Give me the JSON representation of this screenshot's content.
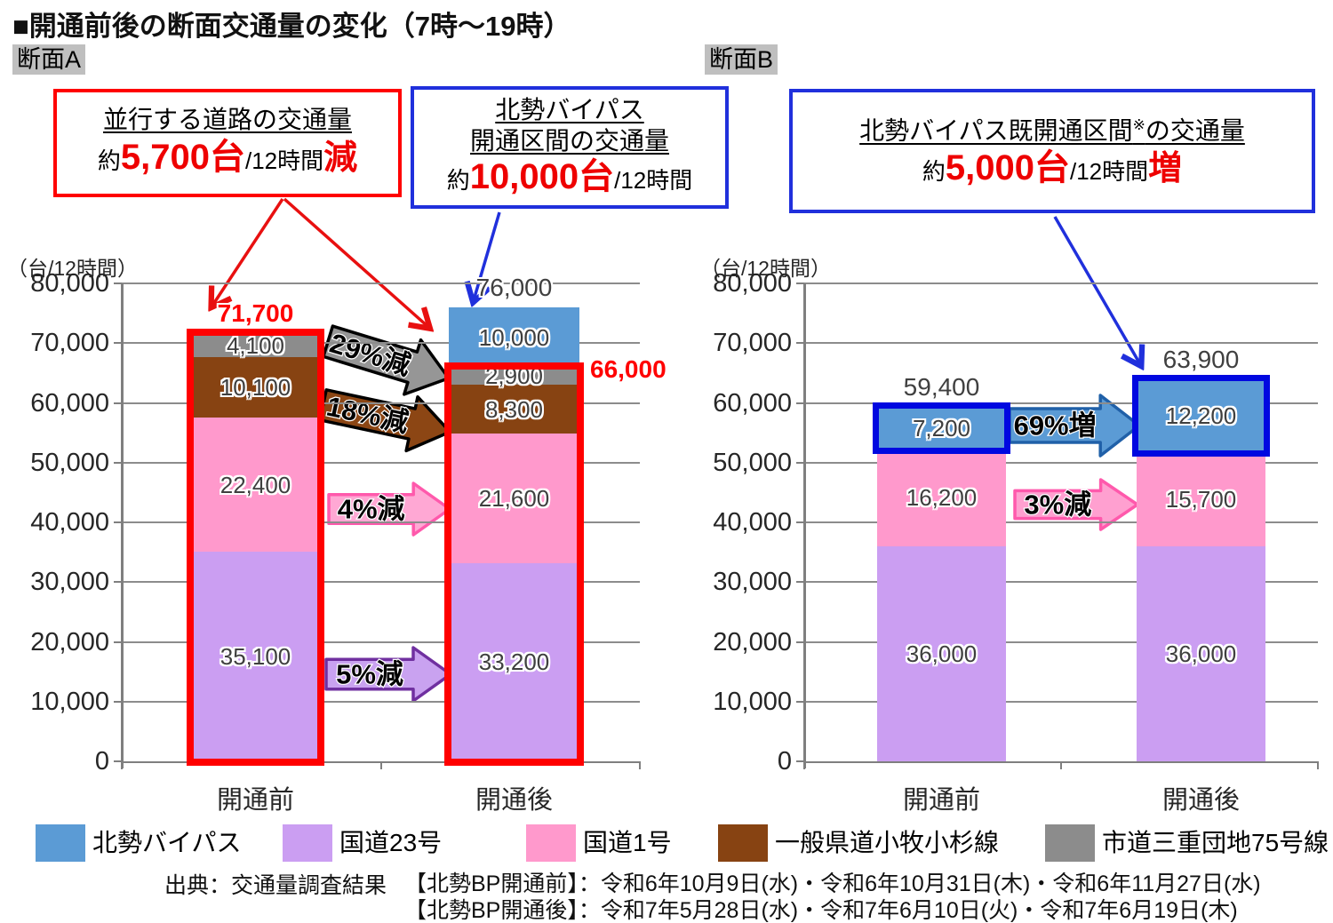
{
  "title": "■開通前後の断面交通量の変化（7時～19時）",
  "section_a": {
    "label": "断面A"
  },
  "section_b": {
    "label": "断面B"
  },
  "callouts": {
    "parallel_roads": {
      "heading": "並行する道路の交通量",
      "prefix": "約",
      "value": "5,700台",
      "unit": "/12時間",
      "suffix": "減"
    },
    "new_section": {
      "heading_line1": "北勢バイパス",
      "heading_line2": "開通区間の交通量",
      "prefix": "約",
      "value": "10,000台",
      "unit": "/12時間"
    },
    "existing_section": {
      "heading": "北勢バイパス既開通区間",
      "note_mark": "※",
      "heading_tail": "の交通量",
      "prefix": "約",
      "value": "5,000台",
      "unit": "/12時間",
      "suffix": "増"
    }
  },
  "y_axis": {
    "unit": "（台/12時間）",
    "max": 80000,
    "step": 10000,
    "tick_labels": [
      "0",
      "10,000",
      "20,000",
      "30,000",
      "40,000",
      "50,000",
      "60,000",
      "70,000",
      "80,000"
    ]
  },
  "chart_data": [
    {
      "type": "bar",
      "stacked": true,
      "section": "断面A",
      "categories": [
        "開通前",
        "開通後"
      ],
      "ylim": [
        0,
        80000
      ],
      "grid": true,
      "series": [
        {
          "name": "国道23号",
          "color": "#CB9EF2",
          "values": [
            35100,
            33200
          ]
        },
        {
          "name": "国道1号",
          "color": "#FF99CC",
          "values": [
            22400,
            21600
          ]
        },
        {
          "name": "一般県道小牧小杉線",
          "color": "#874312",
          "values": [
            10100,
            8300
          ]
        },
        {
          "name": "市道三重団地75号線",
          "color": "#8C8C8C",
          "values": [
            4100,
            2900
          ]
        },
        {
          "name": "北勢バイパス",
          "color": "#5B9BD5",
          "values": [
            0,
            10000
          ]
        }
      ],
      "total_values": [
        71700,
        76000
      ],
      "totals": [
        {
          "label": "71,700",
          "color": "#FF0000",
          "bold": true
        },
        {
          "label": "76,000",
          "color": "#404040",
          "bold": false
        }
      ],
      "highlights": [
        {
          "bar": 0,
          "from": 0,
          "to": 71700,
          "color": "#FF0000",
          "thickness": 8
        },
        {
          "bar": 1,
          "from": 0,
          "to": 66000,
          "color": "#FF0000",
          "thickness": 8,
          "label": "66,000",
          "label_color": "#FF0000"
        }
      ]
    },
    {
      "type": "bar",
      "stacked": true,
      "section": "断面B",
      "categories": [
        "開通前",
        "開通後"
      ],
      "ylim": [
        0,
        80000
      ],
      "grid": true,
      "series": [
        {
          "name": "国道23号",
          "color": "#CB9EF2",
          "values": [
            36000,
            36000
          ]
        },
        {
          "name": "国道1号",
          "color": "#FF99CC",
          "values": [
            16200,
            15700
          ]
        },
        {
          "name": "北勢バイパス",
          "color": "#5B9BD5",
          "values": [
            7200,
            12200
          ]
        }
      ],
      "total_values": [
        59400,
        63900
      ],
      "totals": [
        {
          "label": "59,400",
          "color": "#404040",
          "bold": false
        },
        {
          "label": "63,900",
          "color": "#404040",
          "bold": false
        }
      ],
      "highlights": [
        {
          "bar": 0,
          "from": 52200,
          "to": 59400,
          "color": "#0008E0",
          "thickness": 7
        },
        {
          "bar": 1,
          "from": 51700,
          "to": 63900,
          "color": "#0008E0",
          "thickness": 7
        }
      ]
    }
  ],
  "arrows": [
    {
      "chart": "A",
      "label": "29%減",
      "fill": "#969696",
      "stroke": "#000000"
    },
    {
      "chart": "A",
      "label": "18%減",
      "fill": "#8C4614",
      "stroke": "#000000"
    },
    {
      "chart": "A",
      "label": "4%減",
      "fill": "#FFA8D4",
      "stroke": "#FF59AC"
    },
    {
      "chart": "A",
      "label": "5%減",
      "fill": "#C9A2F0",
      "stroke": "#7030A0"
    },
    {
      "chart": "B",
      "label": "69%増",
      "fill": "#5B9BD5",
      "stroke": "#2060A8"
    },
    {
      "chart": "B",
      "label": "3%減",
      "fill": "#FFA0D0",
      "stroke": "#FF59AC"
    }
  ],
  "legend": {
    "items": [
      {
        "label": "北勢バイパス",
        "color": "#5B9BD5"
      },
      {
        "label": "国道23号",
        "color": "#CB9EF2"
      },
      {
        "label": "国道1号",
        "color": "#FF99CC"
      },
      {
        "label": "一般県道小牧小杉線",
        "color": "#874312"
      },
      {
        "label": "市道三重団地75号線",
        "color": "#8C8C8C"
      }
    ]
  },
  "footer": {
    "source": "出典：交通量調査結果",
    "line1": "【北勢BP開通前】：令和6年10月9日(水)・令和6年10月31日(木)・令和6年11月27日(水)",
    "line2": "【北勢BP開通後】：令和7年5月28日(水)・令和7年6月10日(火)・令和7年6月19日(木)"
  }
}
